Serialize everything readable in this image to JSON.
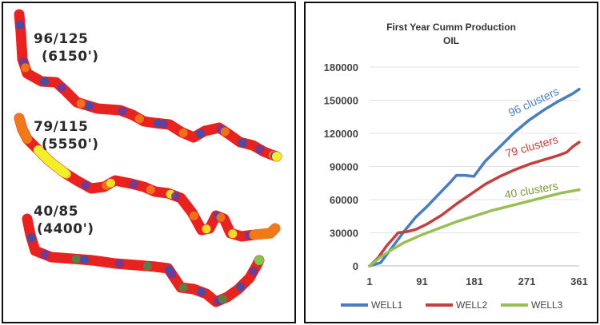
{
  "left_panel": {
    "wells": [
      {
        "label": "96/125",
        "depth": "(6150')"
      },
      {
        "label": "79/115",
        "depth": "(5550')"
      },
      {
        "label": "40/85",
        "depth": "(4400')"
      }
    ],
    "colors": {
      "red": "#e8221e",
      "orange": "#f07a1a",
      "yellow": "#f2ee2a",
      "purple": "#6a3c9c",
      "blue": "#3a50b0",
      "green": "#4a8a4a",
      "lightgreen": "#7cc84a"
    }
  },
  "chart_data": {
    "type": "line",
    "title": "First Year Cumm Production",
    "subtitle": "OIL",
    "xlabel": "",
    "ylabel": "",
    "x_ticks": [
      1,
      91,
      181,
      271,
      361
    ],
    "y_ticks": [
      0,
      30000,
      60000,
      90000,
      120000,
      150000,
      180000
    ],
    "xlim": [
      1,
      361
    ],
    "ylim": [
      0,
      180000
    ],
    "legend_position": "bottom",
    "series": [
      {
        "name": "WELL1",
        "color": "#4a7dc0",
        "x": [
          1,
          20,
          40,
          60,
          80,
          100,
          120,
          140,
          150,
          165,
          180,
          200,
          225,
          250,
          275,
          300,
          325,
          350,
          361
        ],
        "values": [
          0,
          3000,
          17000,
          31000,
          44000,
          54000,
          65000,
          76000,
          82000,
          82000,
          81000,
          95000,
          108000,
          121000,
          132000,
          141000,
          149000,
          156000,
          160000
        ]
      },
      {
        "name": "WELL2",
        "color": "#c0413f",
        "x": [
          1,
          15,
          30,
          50,
          65,
          80,
          100,
          125,
          150,
          175,
          200,
          225,
          250,
          275,
          300,
          325,
          340,
          350,
          361
        ],
        "values": [
          0,
          7000,
          18000,
          30000,
          31000,
          33000,
          38000,
          46000,
          56000,
          65000,
          74000,
          81000,
          87000,
          92000,
          96000,
          100000,
          103000,
          108000,
          112000
        ]
      },
      {
        "name": "WELL3",
        "color": "#98bf55",
        "x": [
          1,
          20,
          40,
          60,
          90,
          120,
          150,
          180,
          210,
          240,
          270,
          300,
          330,
          361
        ],
        "values": [
          0,
          8000,
          15000,
          21000,
          28000,
          34000,
          40000,
          45000,
          50000,
          54000,
          58000,
          62000,
          66000,
          69000
        ]
      }
    ],
    "annotations": [
      {
        "text": "96 clusters",
        "color": "#4a7dc0"
      },
      {
        "text": "79 clusters",
        "color": "#c0413f"
      },
      {
        "text": "40 clusters",
        "color": "#7a9a3a"
      }
    ]
  }
}
